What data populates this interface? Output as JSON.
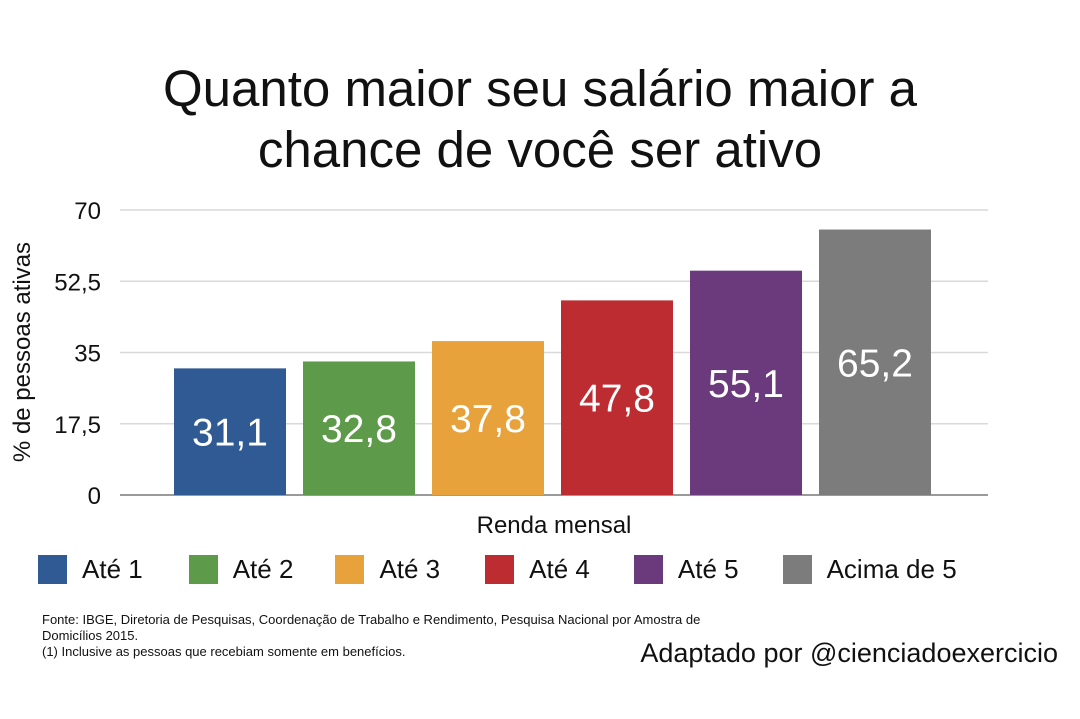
{
  "chart_data": {
    "type": "bar",
    "title": "Quanto maior seu salário maior a chance de você ser ativo",
    "title_lines": [
      "Quanto maior seu salário maior a",
      "chance de você ser ativo"
    ],
    "xlabel": "Renda mensal",
    "ylabel": "% de pessoas ativas",
    "ylim": [
      0,
      70
    ],
    "yticks": [
      0,
      17.5,
      35,
      52.5,
      70
    ],
    "ytick_labels": [
      "0",
      "17,5",
      "35",
      "52,5",
      "70"
    ],
    "categories": [
      "Até 1",
      "Até 2",
      "Até 3",
      "Até 4",
      "Até 5",
      "Acima de 5"
    ],
    "values": [
      31.1,
      32.8,
      37.8,
      47.8,
      55.1,
      65.2
    ],
    "value_labels": [
      "31,1",
      "32,8",
      "37,8",
      "47,8",
      "55,1",
      "65,2"
    ],
    "colors": [
      "#2f5a93",
      "#5d9a4a",
      "#e8a23c",
      "#bd2c31",
      "#6b3a7d",
      "#7c7c7c"
    ],
    "grid": true,
    "legend_position": "bottom"
  },
  "source": {
    "line1": "Fonte: IBGE, Diretoria de Pesquisas, Coordenação de Trabalho e Rendimento, Pesquisa Nacional por Amostra de",
    "line2": "Domicílios 2015.",
    "line3": "(1) Inclusive as pessoas que recebiam somente em benefícios."
  },
  "credit": "Adaptado por @cienciadoexercicio"
}
